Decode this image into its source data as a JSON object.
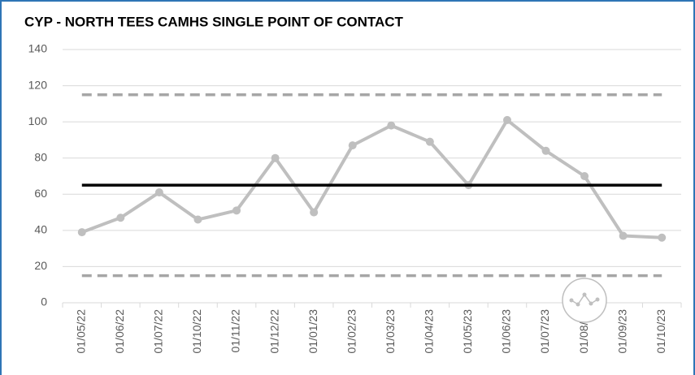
{
  "chart_data": {
    "type": "line",
    "title": "CYP - NORTH TEES CAMHS SINGLE POINT OF CONTACT",
    "categories": [
      "01/05/22",
      "01/06/22",
      "01/07/22",
      "01/10/22",
      "01/11/22",
      "01/12/22",
      "01/01/23",
      "01/02/23",
      "01/03/23",
      "01/04/23",
      "01/05/23",
      "01/06/23",
      "01/07/23",
      "01/08/23",
      "01/09/23",
      "01/10/23"
    ],
    "series": [
      {
        "color": "#bfbfbf",
        "marker": true,
        "values": [
          39,
          47,
          61,
          46,
          51,
          80,
          50,
          87,
          98,
          89,
          65,
          101,
          84,
          70,
          37,
          36
        ]
      },
      {
        "color": "#000000",
        "values": [
          65,
          65,
          65,
          65,
          65,
          65,
          65,
          65,
          65,
          65,
          65,
          65,
          65,
          65,
          65,
          65
        ]
      },
      {
        "color": "#a6a6a6",
        "dash": true,
        "values": [
          115,
          115,
          115,
          115,
          115,
          115,
          115,
          115,
          115,
          115,
          115,
          115,
          115,
          115,
          115,
          115
        ]
      },
      {
        "color": "#a6a6a6",
        "dash": true,
        "values": [
          15,
          15,
          15,
          15,
          15,
          15,
          15,
          15,
          15,
          15,
          15,
          15,
          15,
          15,
          15,
          15
        ]
      }
    ],
    "ylim": [
      0,
      140
    ],
    "yticks": [
      0,
      20,
      40,
      60,
      80,
      100,
      120,
      140
    ],
    "grid": true
  }
}
